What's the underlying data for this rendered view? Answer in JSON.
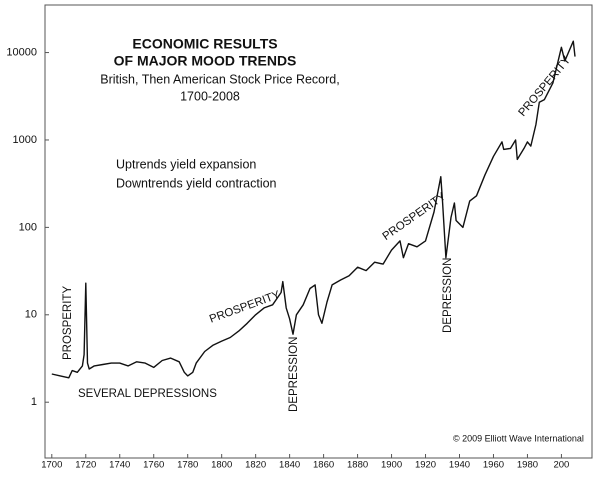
{
  "chart_data": {
    "type": "line",
    "title": [
      "ECONOMIC RESULTS",
      "OF MAJOR MOOD TRENDS"
    ],
    "subtitle": [
      "British, Then American Stock Price Record,",
      "1700-2008"
    ],
    "annotations": [
      "Uptrends yield expansion",
      "Downtrends yield contraction",
      "PROSPERITY",
      "SEVERAL DEPRESSIONS",
      "PROSPERITY",
      "DEPRESSION",
      "PROSPERITY",
      "DEPRESSION",
      "PROSPERITY",
      "© 2009 Elliott Wave International"
    ],
    "x": [
      1700,
      1705,
      1710,
      1712,
      1715,
      1718,
      1719,
      1720,
      1721,
      1722,
      1725,
      1730,
      1735,
      1740,
      1745,
      1750,
      1755,
      1760,
      1765,
      1770,
      1775,
      1778,
      1780,
      1783,
      1785,
      1790,
      1795,
      1800,
      1805,
      1810,
      1815,
      1820,
      1825,
      1830,
      1835,
      1836,
      1838,
      1840,
      1842,
      1844,
      1848,
      1852,
      1855,
      1857,
      1859,
      1862,
      1865,
      1870,
      1875,
      1880,
      1885,
      1890,
      1895,
      1900,
      1905,
      1907,
      1910,
      1915,
      1920,
      1925,
      1929,
      1930,
      1932,
      1935,
      1937,
      1938,
      1942,
      1946,
      1950,
      1955,
      1960,
      1965,
      1966,
      1970,
      1973,
      1974,
      1978,
      1980,
      1982,
      1985,
      1987,
      1990,
      1995,
      2000,
      2002,
      2007,
      2008
    ],
    "series": [
      {
        "color": "#111111",
        "values": [
          2.1,
          2.0,
          1.9,
          2.3,
          2.2,
          2.6,
          3.5,
          23,
          2.8,
          2.4,
          2.6,
          2.7,
          2.8,
          2.8,
          2.6,
          2.9,
          2.8,
          2.5,
          3.0,
          3.2,
          2.9,
          2.2,
          2.0,
          2.2,
          2.8,
          3.8,
          4.5,
          5,
          5.5,
          6.5,
          8,
          10,
          12,
          13,
          18,
          24,
          12,
          9,
          6,
          10,
          13,
          20,
          22,
          10,
          8,
          14,
          22,
          25,
          28,
          35,
          32,
          40,
          38,
          55,
          70,
          45,
          65,
          60,
          70,
          150,
          380,
          200,
          45,
          130,
          190,
          120,
          100,
          200,
          230,
          400,
          650,
          950,
          780,
          800,
          1000,
          600,
          800,
          950,
          850,
          1500,
          2700,
          2900,
          4500,
          11500,
          8000,
          13500,
          9000
        ]
      }
    ],
    "xlim": [
      1696,
      2018
    ],
    "xticks": [
      1700,
      1720,
      1740,
      1760,
      1780,
      1800,
      1820,
      1840,
      1860,
      1880,
      1900,
      1920,
      1940,
      1960,
      1980,
      {
        "value": 2000,
        "label": "200"
      }
    ],
    "ylim": [
      0.23,
      35000
    ],
    "yticks": [
      1,
      10,
      100,
      1000,
      10000
    ],
    "log_y": true
  }
}
